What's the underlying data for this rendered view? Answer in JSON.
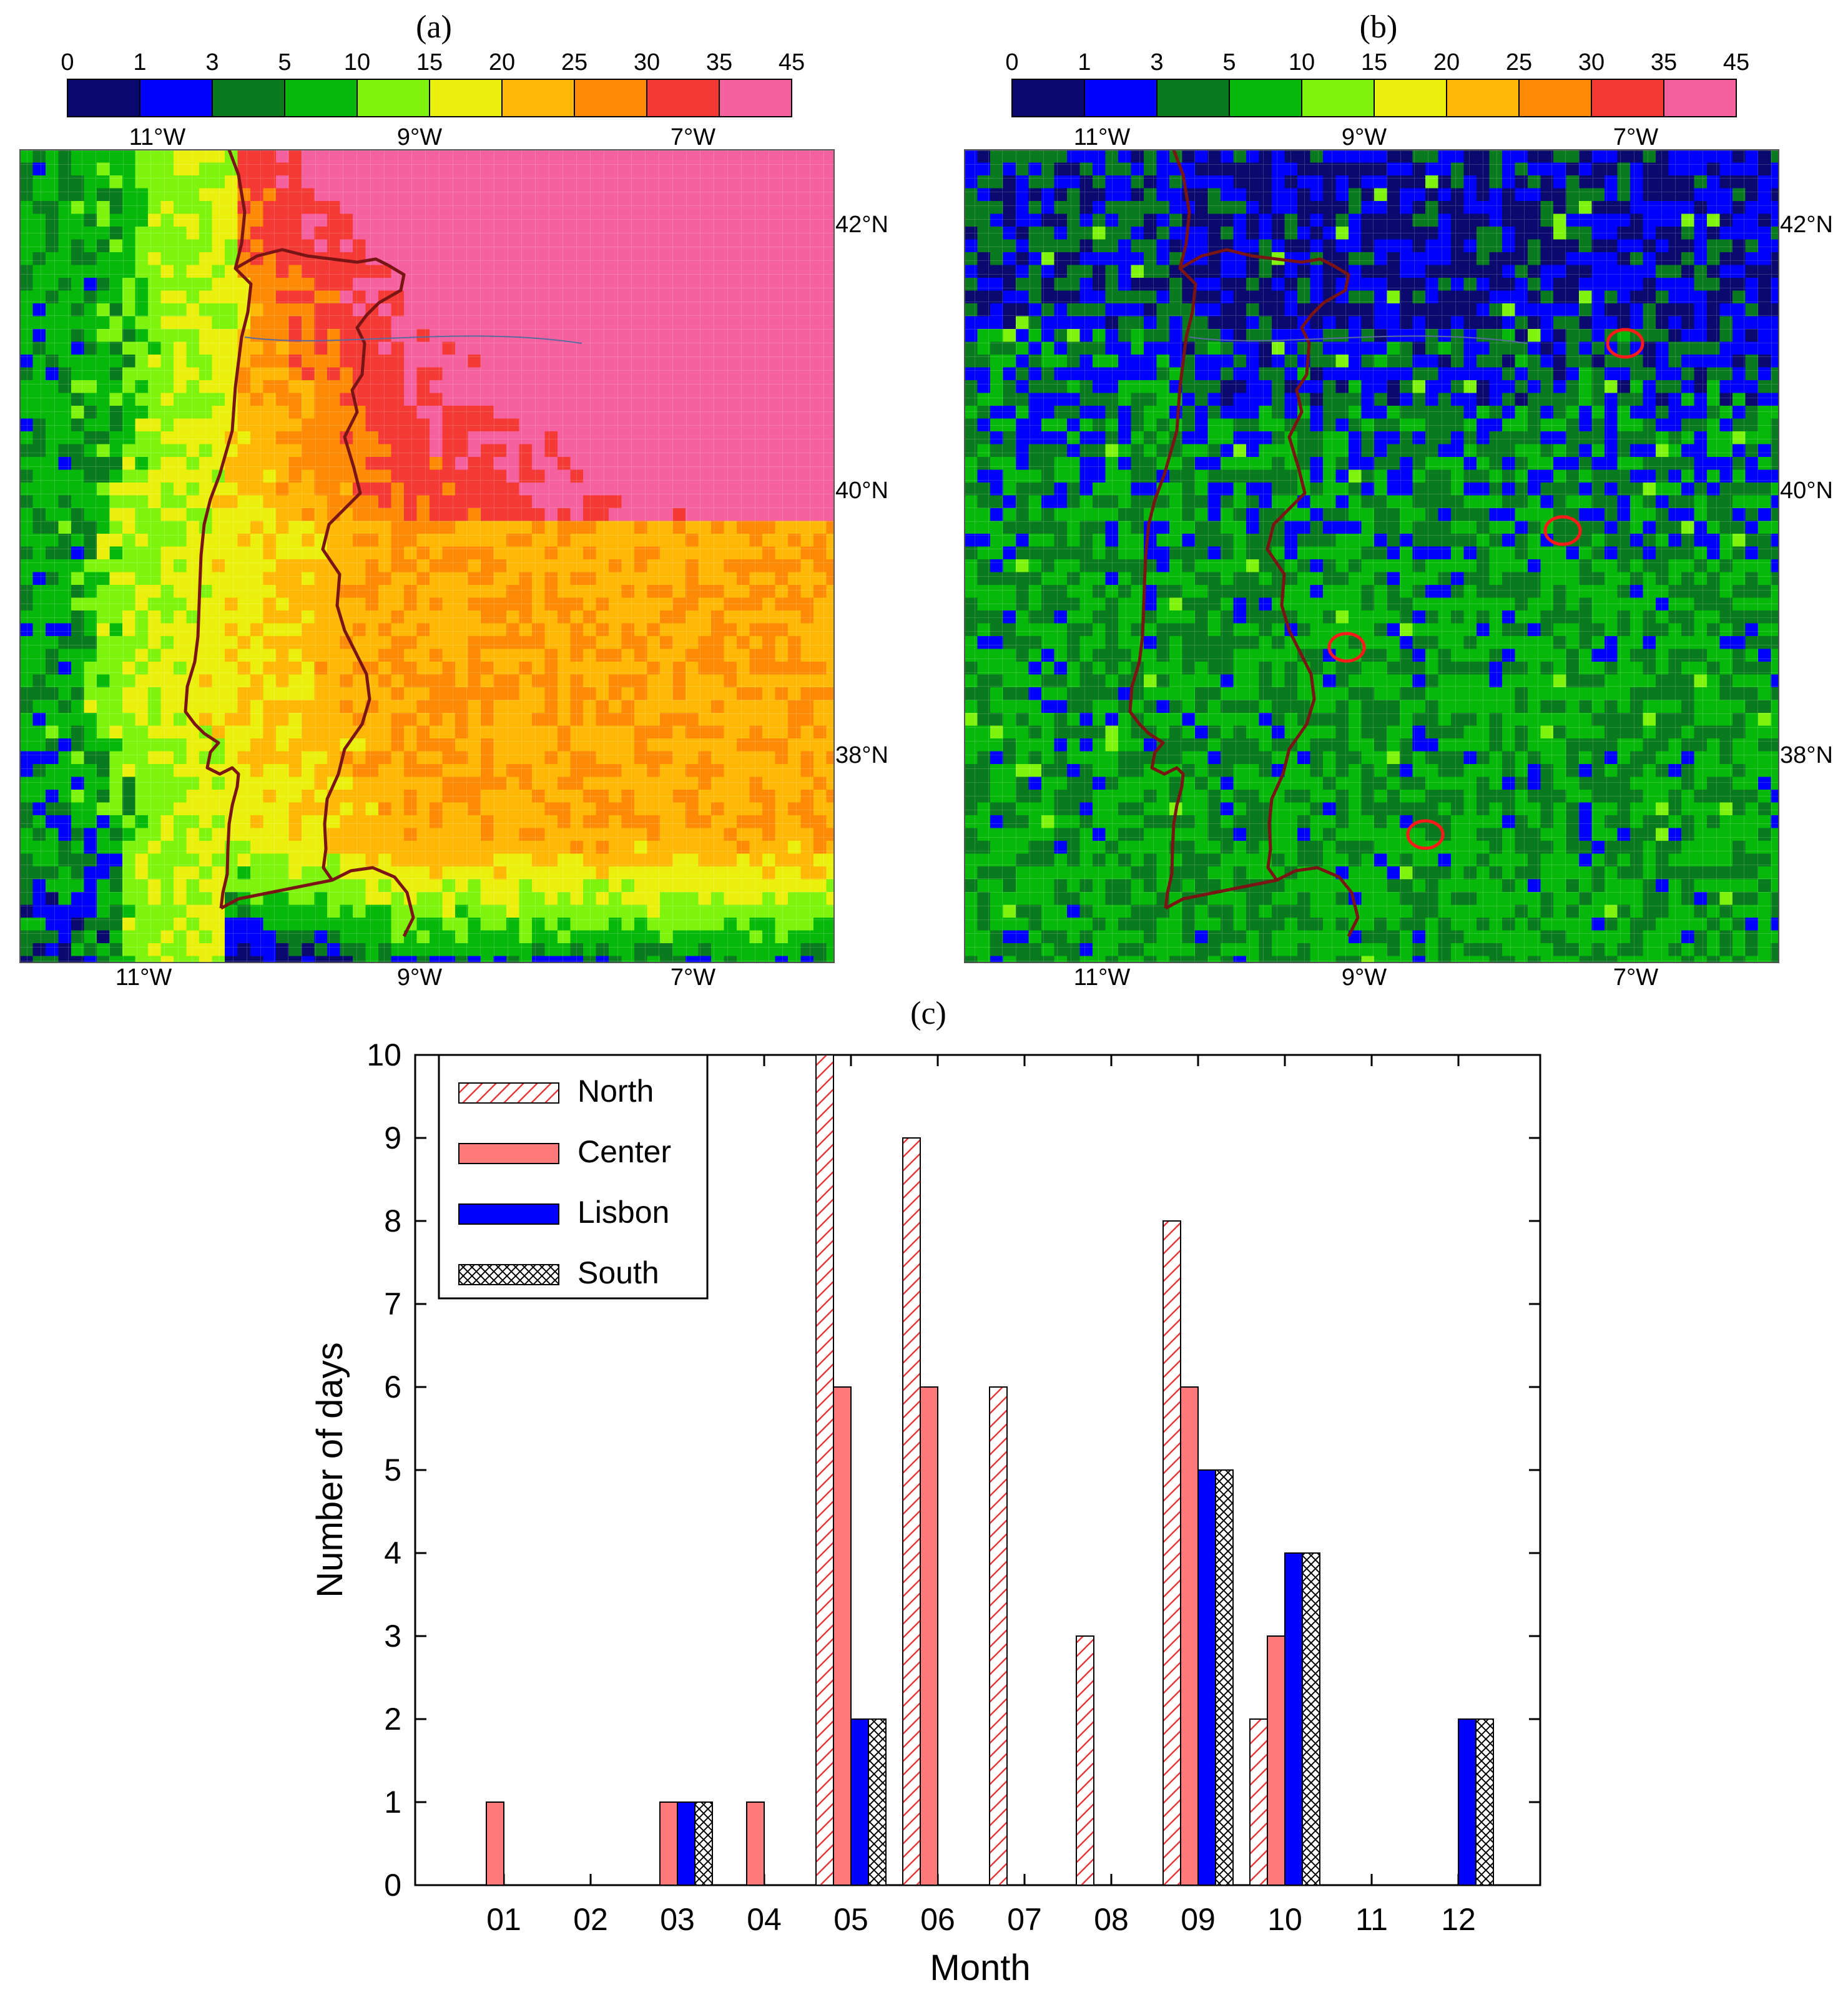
{
  "panels": {
    "a": {
      "label": "(a)"
    },
    "b": {
      "label": "(b)"
    },
    "c": {
      "label": "(c)"
    }
  },
  "colorbar": {
    "ticks": [
      "0",
      "1",
      "3",
      "5",
      "10",
      "15",
      "20",
      "25",
      "30",
      "35",
      "45"
    ],
    "colors": [
      "#0a0a6e",
      "#0000ff",
      "#0a7a1e",
      "#05b80a",
      "#7ef40e",
      "#eaf00c",
      "#ffb806",
      "#ff8a06",
      "#f53a35",
      "#f5609e"
    ]
  },
  "map_axes": {
    "lon_labels": [
      "11°W",
      "9°W",
      "7°W"
    ],
    "lat_labels": [
      "42°N",
      "40°N",
      "38°N"
    ]
  },
  "chart_data": {
    "type": "bar",
    "title": "(c)",
    "xlabel": "Month",
    "ylabel": "Number of days",
    "ylim": [
      0,
      10
    ],
    "yticks": [
      "0",
      "1",
      "2",
      "3",
      "4",
      "5",
      "6",
      "7",
      "8",
      "9",
      "10"
    ],
    "categories": [
      "01",
      "02",
      "03",
      "04",
      "05",
      "06",
      "07",
      "08",
      "09",
      "10",
      "11",
      "12"
    ],
    "series": [
      {
        "name": "North",
        "style": "hatch-diagonal",
        "color": "#e8353a",
        "values": [
          0,
          0,
          0,
          0,
          10,
          9,
          6,
          3,
          8,
          2,
          0,
          0
        ]
      },
      {
        "name": "Center",
        "style": "solid",
        "color": "#ff7a78",
        "values": [
          1,
          0,
          1,
          1,
          6,
          6,
          0,
          0,
          6,
          3,
          0,
          0
        ]
      },
      {
        "name": "Lisbon",
        "style": "solid",
        "color": "#0000ff",
        "values": [
          0,
          0,
          1,
          0,
          2,
          0,
          0,
          0,
          5,
          4,
          0,
          2
        ]
      },
      {
        "name": "South",
        "style": "hatch-cross",
        "color": "#000000",
        "values": [
          0,
          0,
          1,
          0,
          2,
          0,
          0,
          0,
          5,
          4,
          0,
          2
        ]
      }
    ],
    "legend_position": "top-left"
  }
}
